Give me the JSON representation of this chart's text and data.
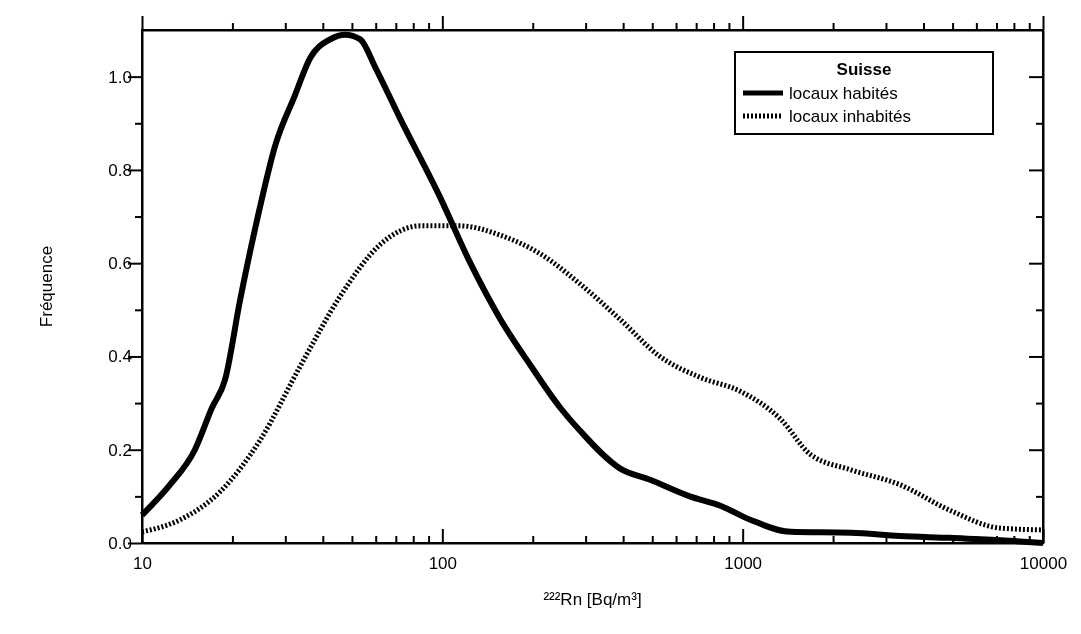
{
  "chart_data": {
    "type": "line",
    "xlabel": "²²²Rn [Bq/m³]",
    "ylabel": "Fréquence",
    "log": "x",
    "legend": "top right",
    "legend_title": "Suisse",
    "grid": false,
    "xlim": [
      10,
      10000
    ],
    "xticks": [
      10,
      {
        "value": 20,
        "label": null
      },
      {
        "value": 30,
        "label": null
      },
      {
        "value": 40,
        "label": null
      },
      {
        "value": 50,
        "label": null
      },
      {
        "value": 60,
        "label": null
      },
      {
        "value": 70,
        "label": null
      },
      {
        "value": 80,
        "label": null
      },
      {
        "value": 90,
        "label": null
      },
      100,
      {
        "value": 200,
        "label": null
      },
      {
        "value": 300,
        "label": null
      },
      {
        "value": 400,
        "label": null
      },
      {
        "value": 500,
        "label": null
      },
      {
        "value": 600,
        "label": null
      },
      {
        "value": 700,
        "label": null
      },
      {
        "value": 800,
        "label": null
      },
      {
        "value": 900,
        "label": null
      },
      1000,
      {
        "value": 2000,
        "label": null
      },
      {
        "value": 3000,
        "label": null
      },
      {
        "value": 4000,
        "label": null
      },
      {
        "value": 5000,
        "label": null
      },
      {
        "value": 6000,
        "label": null
      },
      {
        "value": 7000,
        "label": null
      },
      {
        "value": 8000,
        "label": null
      },
      {
        "value": 9000,
        "label": null
      },
      10000
    ],
    "ylim": [
      0,
      1.1
    ],
    "yticks": [
      {
        "value": 0,
        "label": "0.0"
      },
      {
        "value": 0.1,
        "label": null
      },
      {
        "value": 0.2,
        "label": "0.2"
      },
      {
        "value": 0.3,
        "label": null
      },
      {
        "value": 0.4,
        "label": "0.4"
      },
      {
        "value": 0.5,
        "label": null
      },
      {
        "value": 0.6,
        "label": "0.6"
      },
      {
        "value": 0.7,
        "label": null
      },
      {
        "value": 0.8,
        "label": "0.8"
      },
      {
        "value": 0.9,
        "label": null
      },
      {
        "value": 1.0,
        "label": "1.0"
      }
    ],
    "series": [
      {
        "name": "locaux habités",
        "color": "#000000",
        "line_style": "solid",
        "x": [
          10,
          12.4,
          15,
          17.1,
          18.9,
          21.2,
          24.7,
          27.7,
          32.3,
          36.3,
          42.3,
          47.5,
          53.3,
          59.8,
          72.4,
          98.5,
          124,
          156,
          197,
          247,
          288,
          390,
          494,
          667,
          843,
          1060,
          1445,
          2290,
          3340,
          4900,
          7200,
          10000
        ],
        "values": [
          0.06,
          0.125,
          0.2,
          0.29,
          0.35,
          0.52,
          0.72,
          0.85,
          0.96,
          1.04,
          1.08,
          1.09,
          1.08,
          1.02,
          0.91,
          0.74,
          0.6,
          0.48,
          0.38,
          0.29,
          0.24,
          0.16,
          0.135,
          0.1,
          0.08,
          0.05,
          0.024,
          0.022,
          0.015,
          0.011,
          0.006,
          0
        ]
      },
      {
        "name": "locaux inhabités",
        "color": "#000000",
        "line_style": "dotted",
        "x": [
          10,
          13.4,
          18.2,
          24.7,
          33.7,
          45.8,
          62.1,
          84.5,
          115,
          156,
          212,
          288,
          390,
          530,
          723,
          984,
          1340,
          1680,
          2290,
          3340,
          4900,
          7200,
          10000
        ],
        "values": [
          0.024,
          0.05,
          0.11,
          0.22,
          0.38,
          0.53,
          0.64,
          0.68,
          0.68,
          0.66,
          0.62,
          0.555,
          0.48,
          0.4,
          0.355,
          0.325,
          0.265,
          0.19,
          0.157,
          0.125,
          0.07,
          0.032,
          0.028
        ]
      }
    ]
  }
}
